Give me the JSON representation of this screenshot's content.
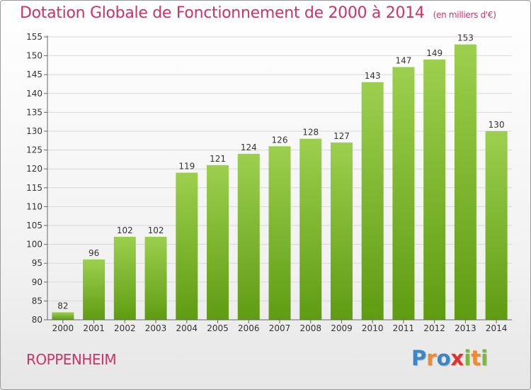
{
  "header": {
    "title": "Dotation Globale de Fonctionnement de 2000 à 2014",
    "units": "(en milliers d'€)"
  },
  "footer": {
    "commune": "ROPPENHEIM",
    "logo": "Proxiti"
  },
  "chart_data": {
    "type": "bar",
    "title": "Dotation Globale de Fonctionnement de 2000 à 2014",
    "xlabel": "",
    "ylabel": "",
    "categories": [
      "2000",
      "2001",
      "2002",
      "2003",
      "2004",
      "2005",
      "2006",
      "2007",
      "2008",
      "2009",
      "2010",
      "2011",
      "2012",
      "2013",
      "2014"
    ],
    "values": [
      82,
      96,
      102,
      102,
      119,
      121,
      124,
      126,
      128,
      127,
      143,
      147,
      149,
      153,
      130
    ],
    "ylim": [
      80,
      155
    ],
    "yticks": [
      80,
      85,
      90,
      95,
      100,
      105,
      110,
      115,
      120,
      125,
      130,
      135,
      140,
      145,
      150,
      155
    ],
    "grid": true,
    "colors": {
      "bar_light": "#9ccf4e",
      "bar_dark": "#5f9c12",
      "grid": "#d7d7d7",
      "text": "#333333"
    }
  }
}
